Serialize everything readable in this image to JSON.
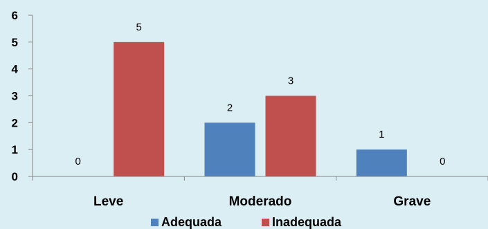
{
  "chart_data": {
    "type": "bar",
    "categories": [
      "Leve",
      "Moderado",
      "Grave"
    ],
    "series": [
      {
        "name": "Adequada",
        "values": [
          0,
          2,
          1
        ],
        "color": "#4f81bd"
      },
      {
        "name": "Inadequada",
        "values": [
          5,
          3,
          0
        ],
        "color": "#c0504d"
      }
    ],
    "ylim": [
      0,
      6
    ],
    "yticks": [
      0,
      1,
      2,
      3,
      4,
      5,
      6
    ],
    "title": "",
    "xlabel": "",
    "ylabel": "",
    "grid": false,
    "legend_position": "bottom"
  }
}
